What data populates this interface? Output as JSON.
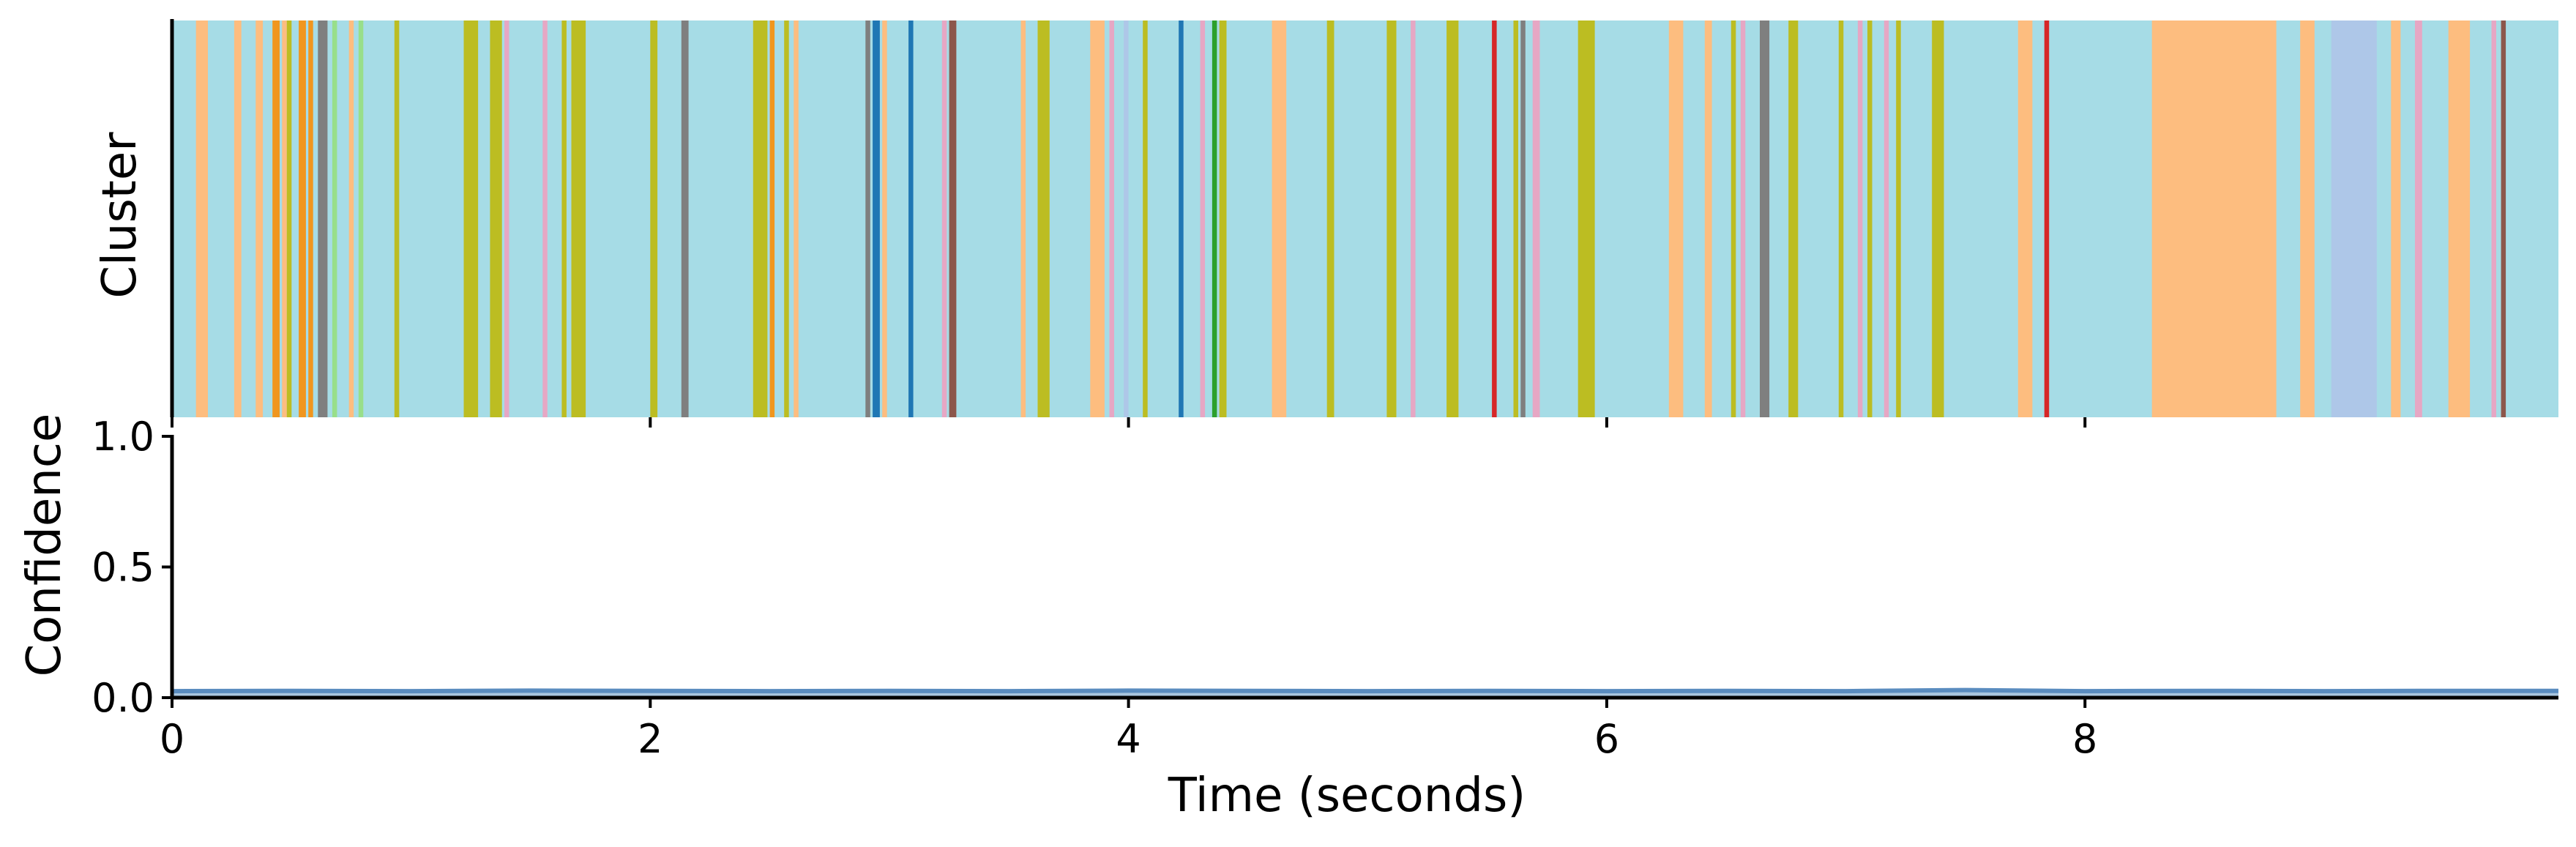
{
  "chart_data": [
    {
      "type": "heatmap",
      "panel": "cluster-strip",
      "ylabel": "Cluster",
      "xlim": [
        0,
        9.98
      ],
      "palette": {
        "base": "#a6dce6",
        "orange": "#fdbd7f",
        "dark_orange": "#f0961e",
        "olive": "#bcbd22",
        "grey": "#7f7f7f",
        "light_green": "#98df8a",
        "red": "#d62728",
        "dark_blue": "#1f77b4",
        "green": "#2ca02c",
        "pink": "#e6a7c4",
        "lavender": "#aec7e8",
        "brown": "#8c564b"
      },
      "segments": [
        {
          "start": 0.0,
          "end": 0.1,
          "color": "base"
        },
        {
          "start": 0.1,
          "end": 0.15,
          "color": "orange"
        },
        {
          "start": 0.26,
          "end": 0.29,
          "color": "orange"
        },
        {
          "start": 0.35,
          "end": 0.38,
          "color": "orange"
        },
        {
          "start": 0.42,
          "end": 0.45,
          "color": "dark_orange"
        },
        {
          "start": 0.46,
          "end": 0.48,
          "color": "orange"
        },
        {
          "start": 0.48,
          "end": 0.5,
          "color": "olive"
        },
        {
          "start": 0.53,
          "end": 0.56,
          "color": "dark_orange"
        },
        {
          "start": 0.57,
          "end": 0.59,
          "color": "dark_orange"
        },
        {
          "start": 0.61,
          "end": 0.65,
          "color": "grey"
        },
        {
          "start": 0.67,
          "end": 0.69,
          "color": "light_green"
        },
        {
          "start": 0.74,
          "end": 0.76,
          "color": "orange"
        },
        {
          "start": 0.78,
          "end": 0.8,
          "color": "light_green"
        },
        {
          "start": 0.93,
          "end": 0.95,
          "color": "olive"
        },
        {
          "start": 1.22,
          "end": 1.28,
          "color": "olive"
        },
        {
          "start": 1.33,
          "end": 1.38,
          "color": "olive"
        },
        {
          "start": 1.39,
          "end": 1.41,
          "color": "pink"
        },
        {
          "start": 1.55,
          "end": 1.57,
          "color": "pink"
        },
        {
          "start": 1.63,
          "end": 1.65,
          "color": "olive"
        },
        {
          "start": 1.67,
          "end": 1.73,
          "color": "olive"
        },
        {
          "start": 2.0,
          "end": 2.03,
          "color": "olive"
        },
        {
          "start": 2.13,
          "end": 2.16,
          "color": "grey"
        },
        {
          "start": 2.43,
          "end": 2.49,
          "color": "olive"
        },
        {
          "start": 2.5,
          "end": 2.52,
          "color": "dark_orange"
        },
        {
          "start": 2.56,
          "end": 2.58,
          "color": "olive"
        },
        {
          "start": 2.6,
          "end": 2.62,
          "color": "orange"
        },
        {
          "start": 2.9,
          "end": 2.92,
          "color": "grey"
        },
        {
          "start": 2.93,
          "end": 2.96,
          "color": "dark_blue"
        },
        {
          "start": 2.97,
          "end": 2.99,
          "color": "orange"
        },
        {
          "start": 3.08,
          "end": 3.1,
          "color": "dark_blue"
        },
        {
          "start": 3.22,
          "end": 3.24,
          "color": "pink"
        },
        {
          "start": 3.25,
          "end": 3.28,
          "color": "brown"
        },
        {
          "start": 3.55,
          "end": 3.57,
          "color": "orange"
        },
        {
          "start": 3.62,
          "end": 3.67,
          "color": "olive"
        },
        {
          "start": 3.84,
          "end": 3.9,
          "color": "orange"
        },
        {
          "start": 3.92,
          "end": 3.94,
          "color": "pink"
        },
        {
          "start": 3.98,
          "end": 4.0,
          "color": "lavender"
        },
        {
          "start": 4.06,
          "end": 4.08,
          "color": "olive"
        },
        {
          "start": 4.21,
          "end": 4.23,
          "color": "dark_blue"
        },
        {
          "start": 4.3,
          "end": 4.32,
          "color": "pink"
        },
        {
          "start": 4.35,
          "end": 4.37,
          "color": "green"
        },
        {
          "start": 4.38,
          "end": 4.41,
          "color": "olive"
        },
        {
          "start": 4.6,
          "end": 4.66,
          "color": "orange"
        },
        {
          "start": 4.83,
          "end": 4.86,
          "color": "olive"
        },
        {
          "start": 5.08,
          "end": 5.12,
          "color": "olive"
        },
        {
          "start": 5.18,
          "end": 5.2,
          "color": "pink"
        },
        {
          "start": 5.33,
          "end": 5.38,
          "color": "olive"
        },
        {
          "start": 5.52,
          "end": 5.54,
          "color": "red"
        },
        {
          "start": 5.61,
          "end": 5.63,
          "color": "olive"
        },
        {
          "start": 5.64,
          "end": 5.66,
          "color": "grey"
        },
        {
          "start": 5.69,
          "end": 5.72,
          "color": "pink"
        },
        {
          "start": 5.88,
          "end": 5.95,
          "color": "olive"
        },
        {
          "start": 6.26,
          "end": 6.32,
          "color": "orange"
        },
        {
          "start": 6.41,
          "end": 6.44,
          "color": "orange"
        },
        {
          "start": 6.52,
          "end": 6.54,
          "color": "olive"
        },
        {
          "start": 6.56,
          "end": 6.58,
          "color": "pink"
        },
        {
          "start": 6.64,
          "end": 6.68,
          "color": "grey"
        },
        {
          "start": 6.76,
          "end": 6.8,
          "color": "olive"
        },
        {
          "start": 6.97,
          "end": 6.99,
          "color": "olive"
        },
        {
          "start": 7.05,
          "end": 7.07,
          "color": "pink"
        },
        {
          "start": 7.09,
          "end": 7.11,
          "color": "olive"
        },
        {
          "start": 7.16,
          "end": 7.18,
          "color": "pink"
        },
        {
          "start": 7.21,
          "end": 7.23,
          "color": "olive"
        },
        {
          "start": 7.36,
          "end": 7.41,
          "color": "olive"
        },
        {
          "start": 7.72,
          "end": 7.78,
          "color": "orange"
        },
        {
          "start": 7.83,
          "end": 7.85,
          "color": "red"
        },
        {
          "start": 8.28,
          "end": 8.8,
          "color": "orange"
        },
        {
          "start": 8.9,
          "end": 8.96,
          "color": "orange"
        },
        {
          "start": 9.03,
          "end": 9.22,
          "color": "lavender"
        },
        {
          "start": 9.28,
          "end": 9.32,
          "color": "orange"
        },
        {
          "start": 9.38,
          "end": 9.41,
          "color": "pink"
        },
        {
          "start": 9.52,
          "end": 9.61,
          "color": "orange"
        },
        {
          "start": 9.7,
          "end": 9.72,
          "color": "pink"
        },
        {
          "start": 9.74,
          "end": 9.76,
          "color": "brown"
        }
      ]
    },
    {
      "type": "area",
      "panel": "confidence",
      "xlabel": "Time (seconds)",
      "ylabel": "Confidence",
      "xlim": [
        0,
        9.98
      ],
      "ylim": [
        0,
        1.0
      ],
      "x_ticks": [
        "0",
        "2",
        "4",
        "6",
        "8"
      ],
      "y_ticks": [
        "0.0",
        "0.5",
        "1.0"
      ],
      "line_color": "#5a8cbf",
      "fill_color": "#a9c6df",
      "series": [
        {
          "x": [
            0,
            0.5,
            1,
            1.5,
            2,
            2.5,
            3,
            3.5,
            4,
            4.5,
            5,
            5.5,
            6,
            6.5,
            7,
            7.5,
            8,
            8.5,
            9,
            9.5,
            9.98
          ],
          "values": [
            0.025,
            0.026,
            0.025,
            0.027,
            0.026,
            0.025,
            0.026,
            0.025,
            0.027,
            0.026,
            0.025,
            0.026,
            0.025,
            0.026,
            0.025,
            0.029,
            0.025,
            0.026,
            0.025,
            0.026,
            0.026
          ]
        }
      ]
    }
  ]
}
